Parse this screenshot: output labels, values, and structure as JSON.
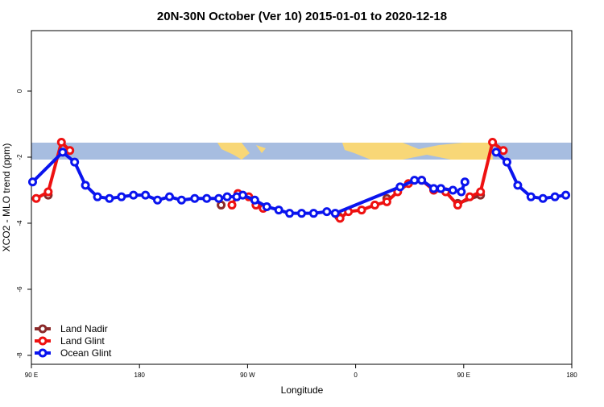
{
  "chart_data": {
    "type": "line",
    "title": "20N-30N October (Ver 10)   2015-01-01 to 2020-12-18",
    "x_label": "Longitude",
    "y_label": "XCO2 - MLO trend (ppm)",
    "xlim": [
      90,
      540
    ],
    "ylim": [
      -8.27,
      1.83
    ],
    "xticks": [
      {
        "value": 90,
        "label": "90 E"
      },
      180,
      {
        "value": 270,
        "label": "90 W"
      },
      {
        "value": 360,
        "label": "0"
      },
      {
        "value": 450,
        "label": "90 E"
      },
      {
        "value": 540,
        "label": "180"
      }
    ],
    "yticks": [
      0,
      -2,
      -4,
      -6,
      -8
    ],
    "legend": "bottom-left",
    "series": [
      {
        "name": "Land Nadir",
        "color": "#8b2a2a",
        "x": [
          104,
          null,
          248,
          null,
          346,
          null,
          386,
          null,
          445,
          464
        ],
        "values": [
          -3.15,
          null,
          -3.45,
          null,
          -3.8,
          null,
          -3.25,
          null,
          -3.4,
          -3.15
        ]
      },
      {
        "name": "Land Glint",
        "color": "#ee1111",
        "x": [
          94,
          104,
          115,
          122,
          null,
          257,
          262,
          271,
          277,
          283,
          null,
          347,
          354,
          365,
          376,
          386,
          395,
          404,
          415,
          425,
          435,
          445,
          455,
          464,
          474,
          483
        ],
        "values": [
          -3.25,
          -3.05,
          -1.55,
          -1.8,
          null,
          -3.45,
          -3.1,
          -3.2,
          -3.45,
          -3.55,
          null,
          -3.85,
          -3.65,
          -3.6,
          -3.45,
          -3.35,
          -3.05,
          -2.8,
          -2.7,
          -3.0,
          -3.05,
          -3.45,
          -3.2,
          -3.05,
          -1.55,
          -1.8
        ]
      },
      {
        "name": "Ocean Glint",
        "color": "#0a14ee",
        "x": [
          91,
          116,
          126,
          135,
          145,
          155,
          165,
          175,
          185,
          195,
          205,
          215,
          226,
          236,
          246,
          253,
          261,
          266,
          276,
          286,
          296,
          305,
          315,
          325,
          336,
          343,
          397,
          409,
          415,
          425,
          431,
          441,
          448,
          451,
          null,
          477,
          486,
          495,
          506,
          516,
          526,
          535
        ],
        "values": [
          -2.75,
          -1.85,
          -2.15,
          -2.85,
          -3.2,
          -3.25,
          -3.2,
          -3.15,
          -3.15,
          -3.3,
          -3.2,
          -3.3,
          -3.25,
          -3.25,
          -3.25,
          -3.2,
          -3.2,
          -3.15,
          -3.3,
          -3.5,
          -3.6,
          -3.7,
          -3.7,
          -3.7,
          -3.65,
          -3.7,
          -2.9,
          -2.7,
          -2.7,
          -2.95,
          -2.95,
          -3.0,
          -3.05,
          -2.75,
          null,
          -1.85,
          -2.15,
          -2.85,
          -3.2,
          -3.25,
          -3.2,
          -3.15
        ]
      }
    ]
  }
}
